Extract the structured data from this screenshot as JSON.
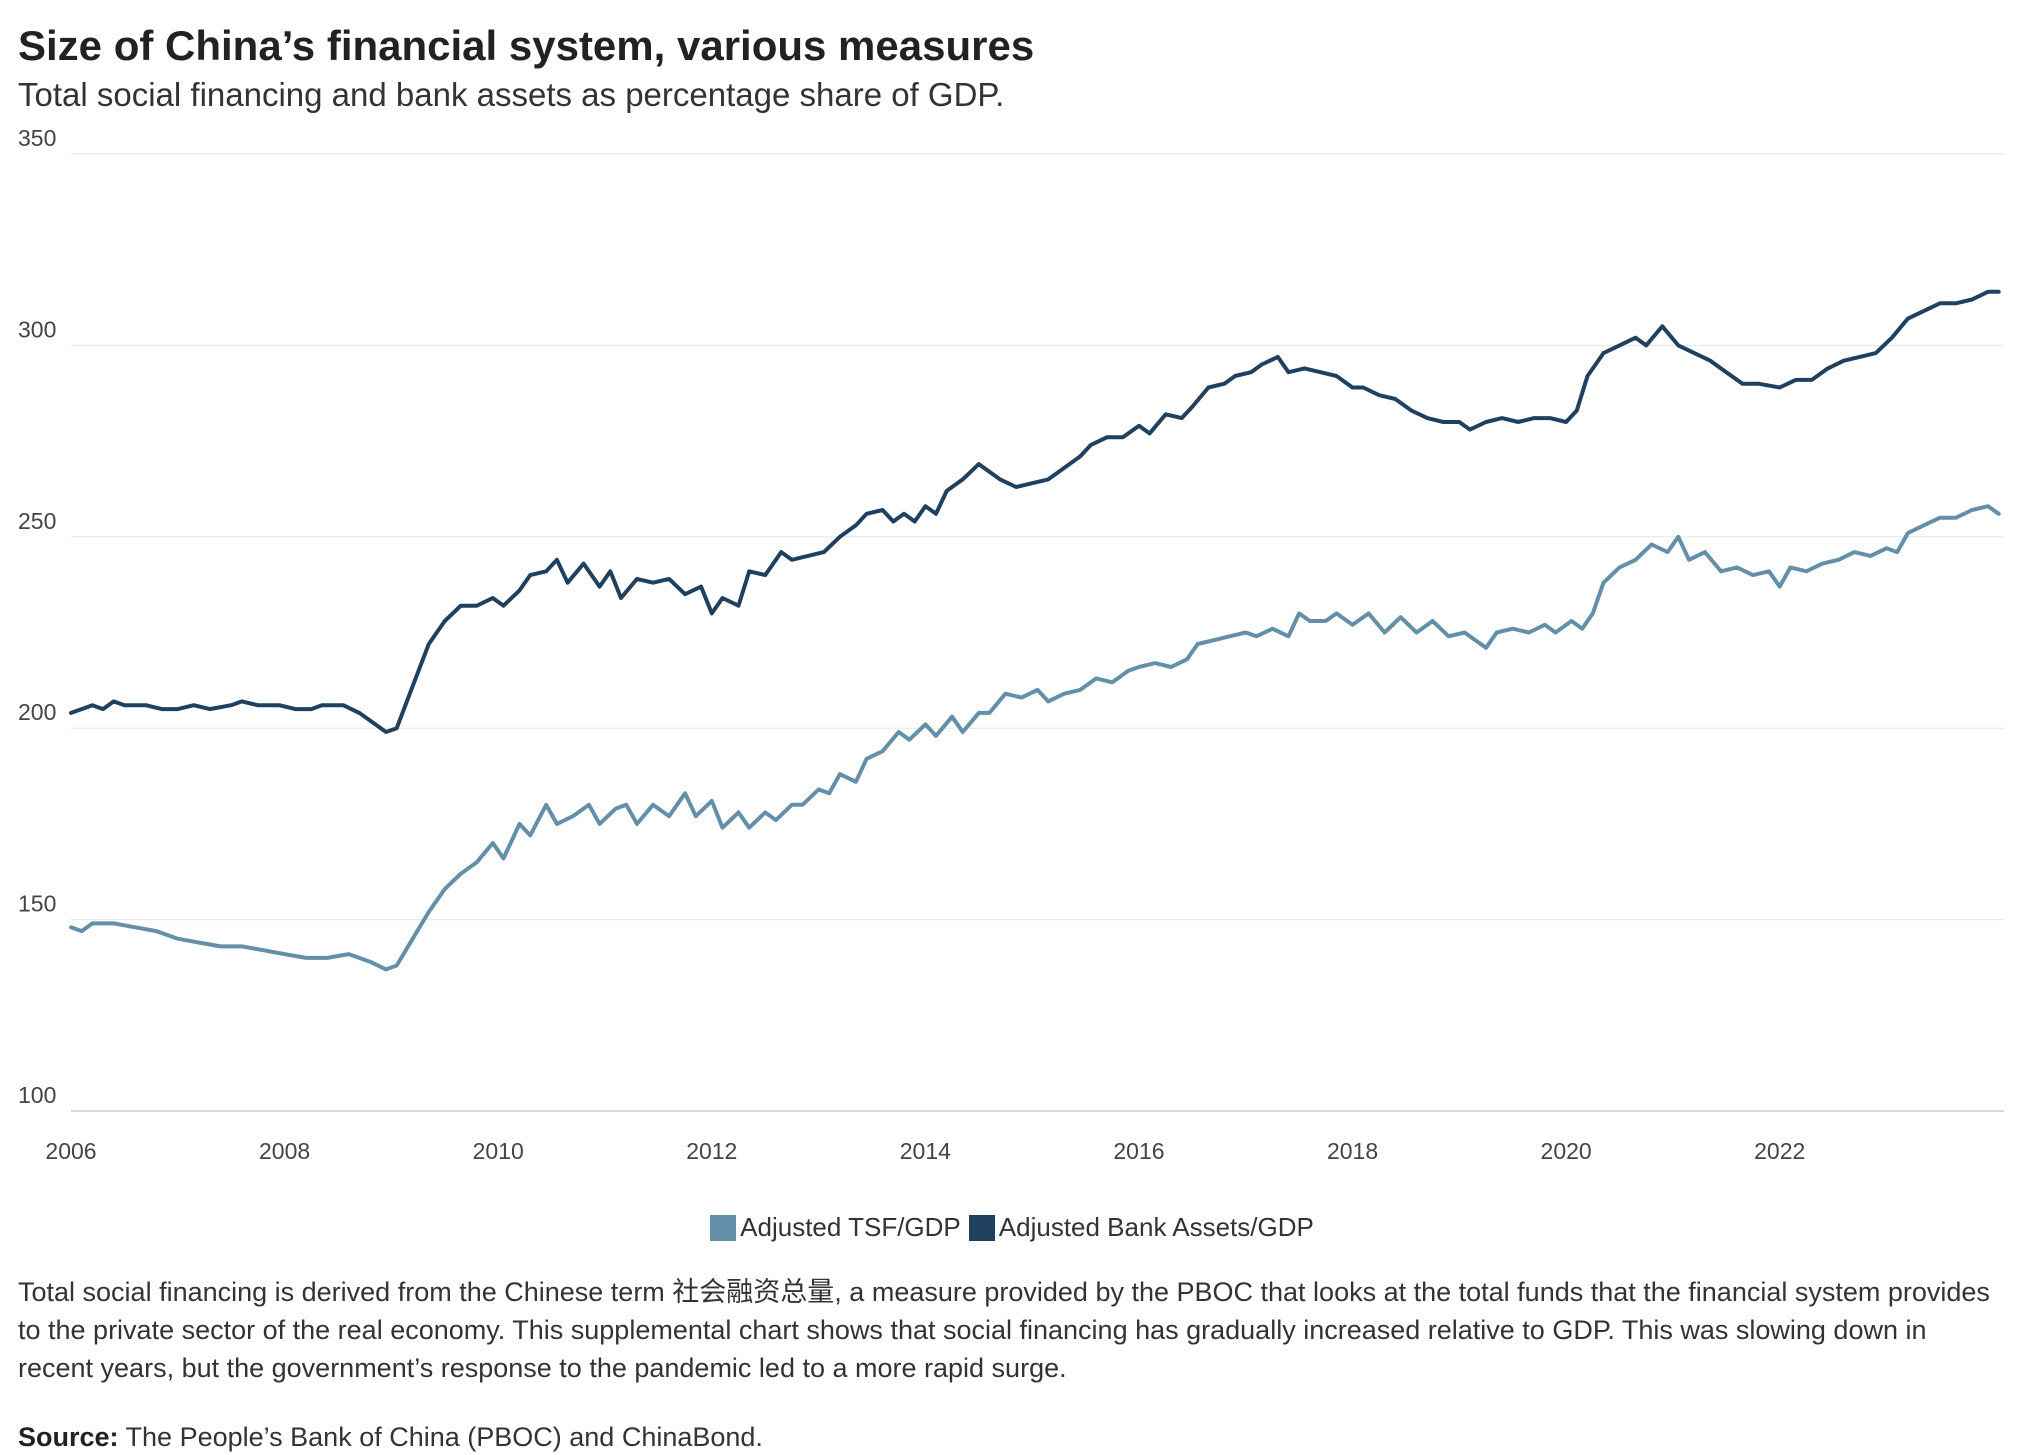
{
  "title": "Size of China’s financial system, various measures",
  "subtitle": "Total social financing and bank assets as percentage share of GDP.",
  "note": "Total social financing is derived from the Chinese term 社会融资总量, a measure provided by the PBOC that looks at the total funds that the financial system provides to the private sector of the real economy. This supplemental chart shows that social financing has gradually increased relative to GDP. This was slowing down in recent years, but the government’s response to the pandemic led to a more rapid surge.",
  "source_label": "Source:",
  "source_text": " The People’s Bank of China (PBOC) and ChinaBond.",
  "colors": {
    "tsf": "#6390a8",
    "bank": "#20405f",
    "grid": "#e6e6e6",
    "axis": "#cccccc"
  },
  "chart_data": {
    "type": "line",
    "title": "Size of China’s financial system, various measures",
    "xlabel": "",
    "ylabel": "",
    "xlim": [
      2006.0,
      2024.1
    ],
    "ylim": [
      100,
      350
    ],
    "yticks": [
      100,
      150,
      200,
      250,
      300,
      350
    ],
    "xticks": [
      2006,
      2008,
      2010,
      2012,
      2014,
      2016,
      2018,
      2020,
      2022
    ],
    "legend_position": "bottom-center",
    "series": [
      {
        "name": "Adjusted TSF/GDP",
        "color": "#6390a8",
        "points": [
          [
            2006.0,
            148
          ],
          [
            2006.1,
            147
          ],
          [
            2006.2,
            149
          ],
          [
            2006.4,
            149
          ],
          [
            2006.6,
            148
          ],
          [
            2006.8,
            147
          ],
          [
            2007.0,
            145
          ],
          [
            2007.2,
            144
          ],
          [
            2007.4,
            143
          ],
          [
            2007.6,
            143
          ],
          [
            2007.8,
            142
          ],
          [
            2008.0,
            141
          ],
          [
            2008.2,
            140
          ],
          [
            2008.4,
            140
          ],
          [
            2008.6,
            141
          ],
          [
            2008.8,
            139
          ],
          [
            2008.95,
            137
          ],
          [
            2009.05,
            138
          ],
          [
            2009.2,
            145
          ],
          [
            2009.35,
            152
          ],
          [
            2009.5,
            158
          ],
          [
            2009.65,
            162
          ],
          [
            2009.8,
            165
          ],
          [
            2009.95,
            170
          ],
          [
            2010.05,
            166
          ],
          [
            2010.2,
            175
          ],
          [
            2010.3,
            172
          ],
          [
            2010.45,
            180
          ],
          [
            2010.55,
            175
          ],
          [
            2010.7,
            177
          ],
          [
            2010.85,
            180
          ],
          [
            2010.95,
            175
          ],
          [
            2011.1,
            179
          ],
          [
            2011.2,
            180
          ],
          [
            2011.3,
            175
          ],
          [
            2011.45,
            180
          ],
          [
            2011.6,
            177
          ],
          [
            2011.75,
            183
          ],
          [
            2011.85,
            177
          ],
          [
            2012.0,
            181
          ],
          [
            2012.1,
            174
          ],
          [
            2012.25,
            178
          ],
          [
            2012.35,
            174
          ],
          [
            2012.5,
            178
          ],
          [
            2012.6,
            176
          ],
          [
            2012.75,
            180
          ],
          [
            2012.85,
            180
          ],
          [
            2013.0,
            184
          ],
          [
            2013.1,
            183
          ],
          [
            2013.2,
            188
          ],
          [
            2013.35,
            186
          ],
          [
            2013.45,
            192
          ],
          [
            2013.6,
            194
          ],
          [
            2013.75,
            199
          ],
          [
            2013.85,
            197
          ],
          [
            2014.0,
            201
          ],
          [
            2014.1,
            198
          ],
          [
            2014.25,
            203
          ],
          [
            2014.35,
            199
          ],
          [
            2014.5,
            204
          ],
          [
            2014.6,
            204
          ],
          [
            2014.75,
            209
          ],
          [
            2014.9,
            208
          ],
          [
            2015.05,
            210
          ],
          [
            2015.15,
            207
          ],
          [
            2015.3,
            209
          ],
          [
            2015.45,
            210
          ],
          [
            2015.6,
            213
          ],
          [
            2015.75,
            212
          ],
          [
            2015.9,
            215
          ],
          [
            2016.0,
            216
          ],
          [
            2016.15,
            217
          ],
          [
            2016.3,
            216
          ],
          [
            2016.45,
            218
          ],
          [
            2016.55,
            222
          ],
          [
            2016.7,
            223
          ],
          [
            2016.85,
            224
          ],
          [
            2017.0,
            225
          ],
          [
            2017.1,
            224
          ],
          [
            2017.25,
            226
          ],
          [
            2017.4,
            224
          ],
          [
            2017.5,
            230
          ],
          [
            2017.6,
            228
          ],
          [
            2017.75,
            228
          ],
          [
            2017.85,
            230
          ],
          [
            2018.0,
            227
          ],
          [
            2018.15,
            230
          ],
          [
            2018.3,
            225
          ],
          [
            2018.45,
            229
          ],
          [
            2018.6,
            225
          ],
          [
            2018.75,
            228
          ],
          [
            2018.9,
            224
          ],
          [
            2019.05,
            225
          ],
          [
            2019.15,
            223
          ],
          [
            2019.25,
            221
          ],
          [
            2019.35,
            225
          ],
          [
            2019.5,
            226
          ],
          [
            2019.65,
            225
          ],
          [
            2019.8,
            227
          ],
          [
            2019.9,
            225
          ],
          [
            2020.05,
            228
          ],
          [
            2020.15,
            226
          ],
          [
            2020.25,
            230
          ],
          [
            2020.35,
            238
          ],
          [
            2020.5,
            242
          ],
          [
            2020.65,
            244
          ],
          [
            2020.8,
            248
          ],
          [
            2020.95,
            246
          ],
          [
            2021.05,
            250
          ],
          [
            2021.15,
            244
          ],
          [
            2021.3,
            246
          ],
          [
            2021.45,
            241
          ],
          [
            2021.6,
            242
          ],
          [
            2021.75,
            240
          ],
          [
            2021.9,
            241
          ],
          [
            2022.0,
            237
          ],
          [
            2022.1,
            242
          ],
          [
            2022.25,
            241
          ],
          [
            2022.4,
            243
          ],
          [
            2022.55,
            244
          ],
          [
            2022.7,
            246
          ],
          [
            2022.85,
            245
          ],
          [
            2023.0,
            247
          ],
          [
            2023.1,
            246
          ],
          [
            2023.2,
            251
          ],
          [
            2023.35,
            253
          ],
          [
            2023.5,
            255
          ],
          [
            2023.65,
            255
          ],
          [
            2023.8,
            257
          ],
          [
            2023.95,
            258
          ],
          [
            2024.05,
            256
          ]
        ]
      },
      {
        "name": "Adjusted Bank Assets/GDP",
        "color": "#20405f",
        "points": [
          [
            2006.0,
            204
          ],
          [
            2006.1,
            205
          ],
          [
            2006.2,
            206
          ],
          [
            2006.3,
            205
          ],
          [
            2006.4,
            207
          ],
          [
            2006.5,
            206
          ],
          [
            2006.7,
            206
          ],
          [
            2006.85,
            205
          ],
          [
            2007.0,
            205
          ],
          [
            2007.15,
            206
          ],
          [
            2007.3,
            205
          ],
          [
            2007.5,
            206
          ],
          [
            2007.6,
            207
          ],
          [
            2007.75,
            206
          ],
          [
            2007.95,
            206
          ],
          [
            2008.1,
            205
          ],
          [
            2008.25,
            205
          ],
          [
            2008.35,
            206
          ],
          [
            2008.55,
            206
          ],
          [
            2008.7,
            204
          ],
          [
            2008.85,
            201
          ],
          [
            2008.95,
            199
          ],
          [
            2009.05,
            200
          ],
          [
            2009.2,
            211
          ],
          [
            2009.35,
            222
          ],
          [
            2009.5,
            228
          ],
          [
            2009.65,
            232
          ],
          [
            2009.8,
            232
          ],
          [
            2009.95,
            234
          ],
          [
            2010.05,
            232
          ],
          [
            2010.2,
            236
          ],
          [
            2010.3,
            240
          ],
          [
            2010.45,
            241
          ],
          [
            2010.55,
            244
          ],
          [
            2010.65,
            238
          ],
          [
            2010.8,
            243
          ],
          [
            2010.95,
            237
          ],
          [
            2011.05,
            241
          ],
          [
            2011.15,
            234
          ],
          [
            2011.3,
            239
          ],
          [
            2011.45,
            238
          ],
          [
            2011.6,
            239
          ],
          [
            2011.75,
            235
          ],
          [
            2011.9,
            237
          ],
          [
            2012.0,
            230
          ],
          [
            2012.1,
            234
          ],
          [
            2012.25,
            232
          ],
          [
            2012.35,
            241
          ],
          [
            2012.5,
            240
          ],
          [
            2012.65,
            246
          ],
          [
            2012.75,
            244
          ],
          [
            2012.9,
            245
          ],
          [
            2013.05,
            246
          ],
          [
            2013.2,
            250
          ],
          [
            2013.35,
            253
          ],
          [
            2013.45,
            256
          ],
          [
            2013.6,
            257
          ],
          [
            2013.7,
            254
          ],
          [
            2013.8,
            256
          ],
          [
            2013.9,
            254
          ],
          [
            2014.0,
            258
          ],
          [
            2014.1,
            256
          ],
          [
            2014.2,
            262
          ],
          [
            2014.35,
            265
          ],
          [
            2014.5,
            269
          ],
          [
            2014.6,
            267
          ],
          [
            2014.7,
            265
          ],
          [
            2014.85,
            263
          ],
          [
            2015.0,
            264
          ],
          [
            2015.15,
            265
          ],
          [
            2015.3,
            268
          ],
          [
            2015.45,
            271
          ],
          [
            2015.55,
            274
          ],
          [
            2015.7,
            276
          ],
          [
            2015.85,
            276
          ],
          [
            2016.0,
            279
          ],
          [
            2016.1,
            277
          ],
          [
            2016.25,
            282
          ],
          [
            2016.4,
            281
          ],
          [
            2016.5,
            284
          ],
          [
            2016.65,
            289
          ],
          [
            2016.8,
            290
          ],
          [
            2016.9,
            292
          ],
          [
            2017.05,
            293
          ],
          [
            2017.15,
            295
          ],
          [
            2017.3,
            297
          ],
          [
            2017.4,
            293
          ],
          [
            2017.55,
            294
          ],
          [
            2017.7,
            293
          ],
          [
            2017.85,
            292
          ],
          [
            2018.0,
            289
          ],
          [
            2018.1,
            289
          ],
          [
            2018.25,
            287
          ],
          [
            2018.4,
            286
          ],
          [
            2018.55,
            283
          ],
          [
            2018.7,
            281
          ],
          [
            2018.85,
            280
          ],
          [
            2019.0,
            280
          ],
          [
            2019.1,
            278
          ],
          [
            2019.25,
            280
          ],
          [
            2019.4,
            281
          ],
          [
            2019.55,
            280
          ],
          [
            2019.7,
            281
          ],
          [
            2019.85,
            281
          ],
          [
            2020.0,
            280
          ],
          [
            2020.1,
            283
          ],
          [
            2020.2,
            292
          ],
          [
            2020.35,
            298
          ],
          [
            2020.5,
            300
          ],
          [
            2020.65,
            302
          ],
          [
            2020.75,
            300
          ],
          [
            2020.9,
            305
          ],
          [
            2021.05,
            300
          ],
          [
            2021.2,
            298
          ],
          [
            2021.35,
            296
          ],
          [
            2021.5,
            293
          ],
          [
            2021.65,
            290
          ],
          [
            2021.8,
            290
          ],
          [
            2022.0,
            289
          ],
          [
            2022.15,
            291
          ],
          [
            2022.3,
            291
          ],
          [
            2022.45,
            294
          ],
          [
            2022.6,
            296
          ],
          [
            2022.75,
            297
          ],
          [
            2022.9,
            298
          ],
          [
            2023.05,
            302
          ],
          [
            2023.2,
            307
          ],
          [
            2023.35,
            309
          ],
          [
            2023.5,
            311
          ],
          [
            2023.65,
            311
          ],
          [
            2023.8,
            312
          ],
          [
            2023.95,
            314
          ],
          [
            2024.05,
            314
          ]
        ]
      }
    ]
  }
}
